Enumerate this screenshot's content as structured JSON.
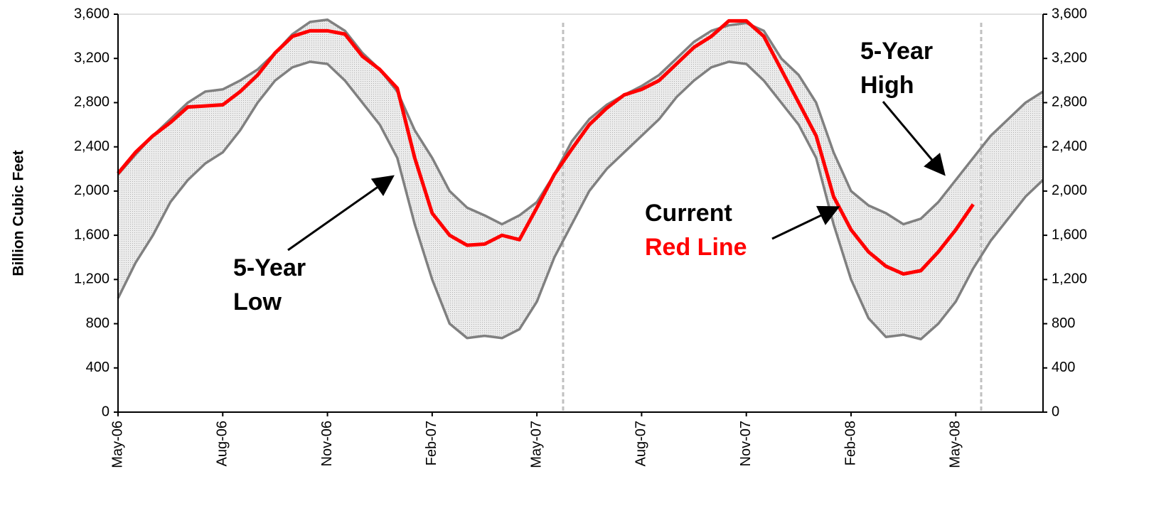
{
  "chart_data": {
    "type": "line",
    "y_axis_label": "Billion Cubic Feet",
    "categories": [
      "May-06",
      null,
      null,
      null,
      null,
      null,
      "Aug-06",
      null,
      null,
      null,
      null,
      null,
      "Nov-06",
      null,
      null,
      null,
      null,
      null,
      "Feb-07",
      null,
      null,
      null,
      null,
      null,
      "May-07",
      null,
      null,
      null,
      null,
      null,
      "Aug-07",
      null,
      null,
      null,
      null,
      null,
      "Nov-07",
      null,
      null,
      null,
      null,
      null,
      "Feb-08",
      null,
      null,
      null,
      null,
      null,
      "May-08",
      null,
      null,
      null,
      null,
      null
    ],
    "series": [
      {
        "color": "#808080",
        "values": [
          2150,
          2330,
          2500,
          2650,
          2800,
          2900,
          2920,
          3000,
          3100,
          3250,
          3420,
          3530,
          3550,
          3450,
          3250,
          3100,
          2900,
          2550,
          2300,
          2000,
          1850,
          1780,
          1700,
          1780,
          1900,
          2150,
          2450,
          2650,
          2780,
          2870,
          2950,
          3050,
          3200,
          3350,
          3450,
          3500,
          3520,
          3450,
          3200,
          3050,
          2800,
          2350,
          2000,
          1870,
          1800,
          1700,
          1750,
          1900,
          2100,
          2300,
          2500,
          2650,
          2800,
          2900
        ]
      },
      {
        "color": "#808080",
        "values": [
          1030,
          1350,
          1600,
          1900,
          2100,
          2250,
          2350,
          2550,
          2800,
          3000,
          3120,
          3170,
          3150,
          3000,
          2800,
          2600,
          2300,
          1700,
          1200,
          800,
          670,
          690,
          670,
          750,
          1000,
          1400,
          1700,
          2000,
          2200,
          2350,
          2500,
          2650,
          2850,
          3000,
          3120,
          3170,
          3150,
          3000,
          2800,
          2600,
          2300,
          1700,
          1200,
          850,
          680,
          700,
          660,
          800,
          1000,
          1300,
          1550,
          1750,
          1950,
          2100
        ]
      },
      {
        "color": "#ff0000",
        "values": [
          2160,
          2350,
          2500,
          2620,
          2760,
          2770,
          2780,
          2900,
          3050,
          3250,
          3400,
          3450,
          3450,
          3420,
          3220,
          3100,
          2930,
          2300,
          1800,
          1600,
          1510,
          1520,
          1600,
          1560,
          1850,
          2150,
          2380,
          2600,
          2750,
          2870,
          2920,
          3000,
          3150,
          3300,
          3400,
          3540,
          3540,
          3400,
          3100,
          2800,
          2500,
          1950,
          1650,
          1450,
          1320,
          1250,
          1280,
          1450,
          1650,
          1880,
          null,
          null,
          null,
          null
        ]
      }
    ],
    "band_color": "#e4e4e4",
    "ylim": [
      0,
      3600
    ],
    "yticks": [
      0,
      400,
      800,
      {
        "value": 1200,
        "label": "1,200"
      },
      {
        "value": 1600,
        "label": "1,600"
      },
      {
        "value": 2000,
        "label": "2,000"
      },
      {
        "value": 2400,
        "label": "2,400"
      },
      {
        "value": 2800,
        "label": "2,800"
      },
      {
        "value": 3200,
        "label": "3,200"
      },
      {
        "value": 3600,
        "label": "3,600"
      }
    ],
    "y2lim": [
      0,
      3600
    ],
    "y2ticks": [
      0,
      400,
      800,
      {
        "value": 1200,
        "label": "1,200"
      },
      {
        "value": 1600,
        "label": "1,600"
      },
      {
        "value": 2000,
        "label": "2,000"
      },
      {
        "value": 2400,
        "label": "2,400"
      },
      {
        "value": 2800,
        "label": "2,800"
      },
      {
        "value": 3200,
        "label": "3,200"
      },
      {
        "value": 3600,
        "label": "3,600"
      }
    ],
    "annotations": [
      {
        "lines": [
          "5-Year",
          "High"
        ]
      },
      {
        "lines": [
          "5-Year",
          "Low"
        ]
      },
      {
        "lines": [
          "Current",
          "Red Line"
        ]
      }
    ]
  }
}
